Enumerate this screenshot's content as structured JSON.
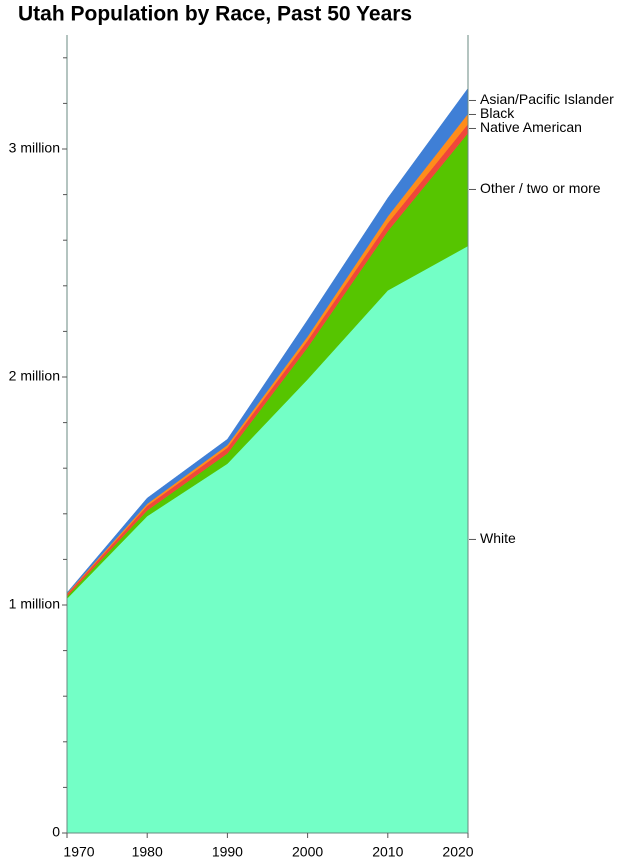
{
  "chart_data": {
    "type": "stacked-area",
    "title": "Utah Population by Race, Past 50 Years",
    "x": [
      1970,
      1980,
      1990,
      2000,
      2010,
      2020
    ],
    "xlim": [
      1970,
      2020
    ],
    "xticks": [
      1970,
      1980,
      1990,
      2000,
      2010,
      2020
    ],
    "ylim": [
      0,
      3500000
    ],
    "yticks": [
      0,
      {
        "value": 1000000,
        "label": "1 million"
      },
      {
        "value": 2000000,
        "label": "2 million"
      },
      {
        "value": 3000000,
        "label": "3 million"
      }
    ],
    "yminorticks": [
      200000,
      400000,
      600000,
      800000,
      1200000,
      1400000,
      1600000,
      1800000,
      2200000,
      2400000,
      2600000,
      2800000,
      3200000,
      3400000
    ],
    "series": [
      {
        "name": "White",
        "color": "#73ffc6",
        "values": [
          1028000,
          1390000,
          1620000,
          1990000,
          2380000,
          2575000
        ]
      },
      {
        "name": "Other / two or more",
        "color": "#56c500",
        "values": [
          10000,
          25000,
          45000,
          140000,
          260000,
          495000
        ]
      },
      {
        "name": "Native American",
        "color": "#f0473a",
        "values": [
          10000,
          20000,
          25000,
          30000,
          35000,
          40000
        ]
      },
      {
        "name": "Black",
        "color": "#ff8c1a",
        "values": [
          3000,
          9000,
          12000,
          18000,
          30000,
          45000
        ]
      },
      {
        "name": "Asian/Pacific Islander",
        "color": "#3f7fd6",
        "values": [
          3000,
          25000,
          25000,
          72000,
          80000,
          111000
        ]
      }
    ]
  }
}
